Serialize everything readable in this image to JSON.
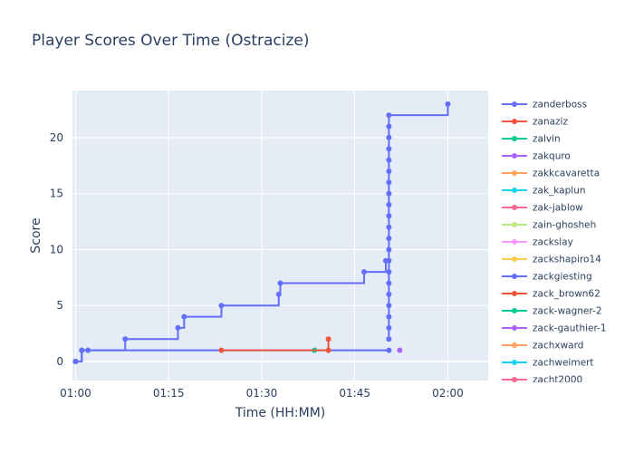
{
  "chart_data": {
    "type": "line",
    "line_shape": "step",
    "title": "Player Scores Over Time (Ostracize)",
    "xlabel": "Time (HH:MM)",
    "ylabel": "Score",
    "x_ticks": [
      "01:00",
      "01:15",
      "01:30",
      "01:45",
      "02:00"
    ],
    "y_ticks": [
      0,
      5,
      10,
      15,
      20
    ],
    "xlim": [
      "00:59:30",
      "02:06:30"
    ],
    "ylim": [
      -1.7,
      24.2
    ],
    "grid": true,
    "plot_background": "#e5ecf6",
    "legend_position": "right",
    "series": [
      {
        "name": "zanderboss",
        "color": "#636efa",
        "points": [
          [
            "01:00:00",
            0
          ],
          [
            "01:01:00",
            1
          ],
          [
            "01:02:00",
            1
          ],
          [
            "01:08:00",
            2
          ],
          [
            "01:16:30",
            3
          ],
          [
            "01:17:30",
            4
          ],
          [
            "01:23:30",
            5
          ],
          [
            "01:32:45",
            6
          ],
          [
            "01:33:00",
            7
          ],
          [
            "01:46:30",
            8
          ],
          [
            "01:50:00",
            9
          ],
          [
            "01:50:30",
            9
          ],
          [
            "01:50:30",
            8
          ],
          [
            "01:50:30",
            7
          ],
          [
            "01:50:30",
            6
          ],
          [
            "01:50:30",
            5
          ],
          [
            "01:50:30",
            4
          ],
          [
            "01:50:30",
            3
          ],
          [
            "01:50:30",
            2
          ],
          [
            "01:50:30",
            10
          ],
          [
            "01:50:30",
            11
          ],
          [
            "01:50:30",
            12
          ],
          [
            "01:50:30",
            13
          ],
          [
            "01:50:30",
            14
          ],
          [
            "01:50:30",
            15
          ],
          [
            "01:50:30",
            16
          ],
          [
            "01:50:30",
            17
          ],
          [
            "01:50:30",
            18
          ],
          [
            "01:50:30",
            19
          ],
          [
            "01:50:30",
            20
          ],
          [
            "01:50:30",
            21
          ],
          [
            "01:50:30",
            22
          ],
          [
            "02:00:00",
            23
          ]
        ]
      },
      {
        "name": "zanaziz",
        "color": "#ef553b",
        "points": [
          [
            "01:23:30",
            1
          ],
          [
            "01:40:45",
            1
          ],
          [
            "01:40:45",
            2
          ]
        ]
      },
      {
        "name": "zalvin",
        "color": "#00cc96",
        "points": [
          [
            "01:38:30",
            1
          ]
        ]
      },
      {
        "name": "zakquro",
        "color": "#ab63fa",
        "points": [
          [
            "01:52:15",
            1
          ]
        ]
      },
      {
        "name": "zakkcavaretta",
        "color": "#ffa15a",
        "points": [
          [
            "01:00:00",
            0
          ]
        ]
      },
      {
        "name": "zak_kaplun",
        "color": "#19d3f3",
        "points": [
          [
            "01:00:00",
            0
          ]
        ]
      },
      {
        "name": "zak-jablow",
        "color": "#ff6692",
        "points": [
          [
            "01:00:00",
            0
          ]
        ]
      },
      {
        "name": "zain-ghosheh",
        "color": "#b6e880",
        "points": [
          [
            "01:00:00",
            0
          ]
        ]
      },
      {
        "name": "zackslay",
        "color": "#ff97ff",
        "points": [
          [
            "01:00:00",
            0
          ]
        ]
      },
      {
        "name": "zackshapiro14",
        "color": "#fecb52",
        "points": [
          [
            "01:00:00",
            0
          ]
        ]
      },
      {
        "name": "zackgiesting",
        "color": "#636efa",
        "points": [
          [
            "01:00:00",
            0
          ],
          [
            "01:01:00",
            1
          ],
          [
            "01:50:30",
            1
          ]
        ]
      },
      {
        "name": "zack_brown62",
        "color": "#ef553b",
        "points": [
          [
            "01:00:00",
            0
          ]
        ]
      },
      {
        "name": "zack-wagner-2",
        "color": "#00cc96",
        "points": [
          [
            "01:00:00",
            0
          ]
        ]
      },
      {
        "name": "zack-gauthier-1",
        "color": "#ab63fa",
        "points": [
          [
            "01:00:00",
            0
          ]
        ]
      },
      {
        "name": "zachxward",
        "color": "#ffa15a",
        "points": [
          [
            "01:00:00",
            0
          ]
        ]
      },
      {
        "name": "zachweimert",
        "color": "#19d3f3",
        "points": [
          [
            "01:00:00",
            0
          ]
        ]
      },
      {
        "name": "zacht2000",
        "color": "#ff6692",
        "points": [
          [
            "01:00:00",
            0
          ]
        ]
      }
    ]
  }
}
